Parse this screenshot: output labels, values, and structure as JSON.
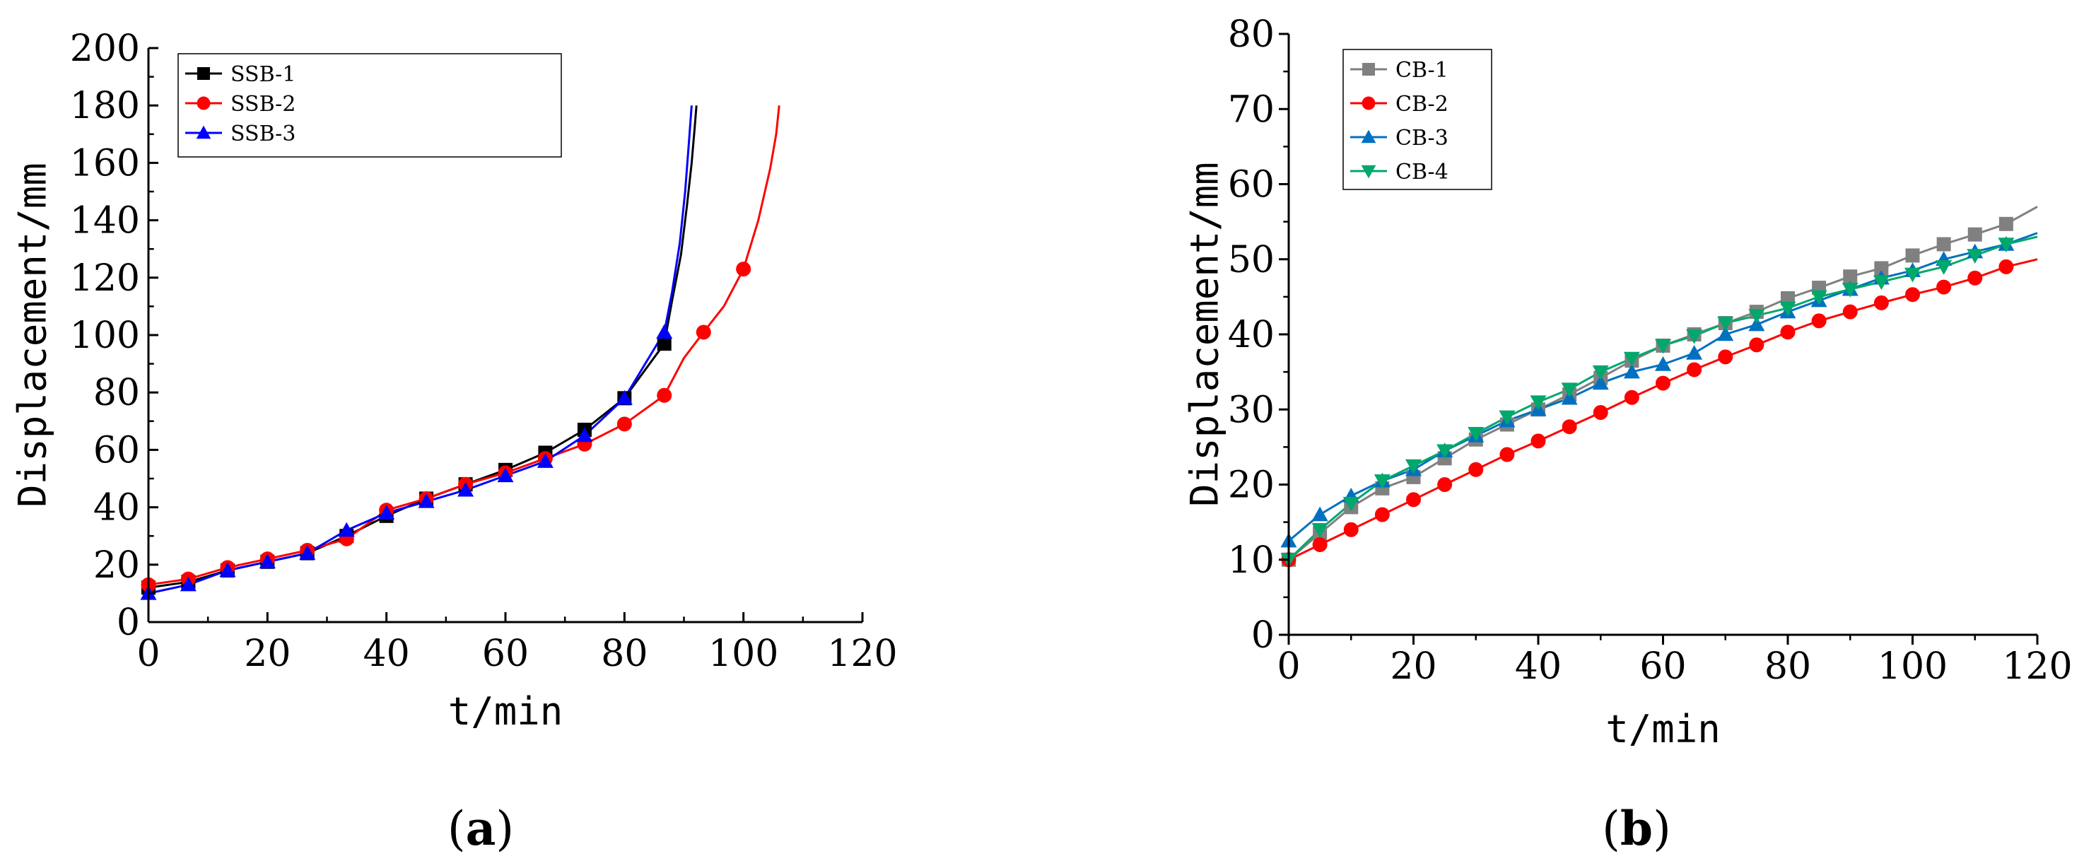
{
  "chart_data": [
    {
      "type": "line",
      "panel_label": "a",
      "title": "",
      "xlabel": "t/min",
      "ylabel": "Displacement/mm",
      "xlim": [
        0,
        120
      ],
      "ylim": [
        0,
        200
      ],
      "xticks": [
        0,
        20,
        40,
        60,
        80,
        100,
        120
      ],
      "yticks": [
        0,
        20,
        40,
        60,
        80,
        100,
        120,
        140,
        160,
        180,
        200
      ],
      "legend_position": "top-left",
      "series": [
        {
          "name": "SSB-1",
          "color": "#000000",
          "marker": "square",
          "x": [
            0,
            6.7,
            13.3,
            20,
            26.7,
            33.3,
            40,
            46.7,
            53.3,
            60,
            66.7,
            73.3,
            80,
            86.7,
            88,
            89.5,
            90.5,
            91.3,
            91.8,
            92.1
          ],
          "y": [
            12,
            14,
            18,
            21,
            24,
            30,
            37,
            43,
            48,
            53,
            59,
            67,
            78,
            97,
            112,
            128,
            145,
            160,
            172,
            180
          ],
          "marker_x": [
            0,
            6.7,
            13.3,
            20,
            26.7,
            33.3,
            40,
            46.7,
            53.3,
            60,
            66.7,
            73.3,
            80,
            86.7
          ],
          "marker_y": [
            12,
            14,
            18,
            21,
            24,
            30,
            37,
            43,
            48,
            53,
            59,
            67,
            78,
            97
          ]
        },
        {
          "name": "SSB-2",
          "color": "#ff0000",
          "marker": "circle",
          "x": [
            0,
            6.7,
            13.3,
            20,
            26.7,
            33.3,
            40,
            46.7,
            53.3,
            60,
            66.7,
            73.3,
            80,
            86.7,
            90,
            93.3,
            96.7,
            100,
            102.5,
            104.5,
            105.5,
            106
          ],
          "y": [
            13,
            15,
            19,
            22,
            25,
            29,
            39,
            43,
            48,
            52,
            57,
            62,
            69,
            79,
            92,
            101,
            110,
            123,
            140,
            158,
            170,
            180
          ],
          "marker_x": [
            0,
            6.7,
            13.3,
            20,
            26.7,
            33.3,
            40,
            46.7,
            53.3,
            60,
            66.7,
            73.3,
            80,
            86.7,
            93.3,
            100
          ],
          "marker_y": [
            13,
            15,
            19,
            22,
            25,
            29,
            39,
            43,
            48,
            52,
            57,
            62,
            69,
            79,
            101,
            123
          ]
        },
        {
          "name": "SSB-3",
          "color": "#0000ff",
          "marker": "triangle-up",
          "x": [
            0,
            6.7,
            13.3,
            20,
            26.7,
            33.3,
            40,
            46.7,
            53.3,
            60,
            66.7,
            73.3,
            80,
            86.7,
            88,
            89.3,
            90.2,
            90.8,
            91.3
          ],
          "y": [
            10,
            13,
            18,
            21,
            24,
            32,
            38,
            42,
            46,
            51,
            56,
            65,
            78,
            101,
            115,
            132,
            150,
            166,
            180
          ],
          "marker_x": [
            0,
            6.7,
            13.3,
            20,
            26.7,
            33.3,
            40,
            46.7,
            53.3,
            60,
            66.7,
            73.3,
            80,
            86.7
          ],
          "marker_y": [
            10,
            13,
            18,
            21,
            24,
            32,
            38,
            42,
            46,
            51,
            56,
            65,
            78,
            101
          ]
        }
      ]
    },
    {
      "type": "line",
      "panel_label": "b",
      "title": "",
      "xlabel": "t/min",
      "ylabel": "Displacement/mm",
      "xlim": [
        0,
        120
      ],
      "ylim": [
        0,
        80
      ],
      "xticks": [
        0,
        20,
        40,
        60,
        80,
        100,
        120
      ],
      "yticks": [
        0,
        10,
        20,
        30,
        40,
        50,
        60,
        70,
        80
      ],
      "legend_position": "top-left",
      "series": [
        {
          "name": "CB-1",
          "color": "#808080",
          "marker": "square",
          "x": [
            0,
            5,
            10,
            15,
            20,
            25,
            30,
            35,
            40,
            45,
            50,
            55,
            60,
            65,
            70,
            75,
            80,
            85,
            90,
            95,
            100,
            105,
            110,
            115,
            120
          ],
          "y": [
            10,
            13.5,
            17,
            19.5,
            21,
            23.5,
            26,
            28,
            30,
            32,
            34.2,
            36.5,
            38.5,
            40,
            41.5,
            43,
            44.8,
            46.2,
            47.7,
            48.8,
            50.5,
            52,
            53.3,
            54.7,
            57
          ],
          "marker_x": [
            0,
            5,
            10,
            15,
            20,
            25,
            30,
            35,
            40,
            45,
            50,
            55,
            60,
            65,
            70,
            75,
            80,
            85,
            90,
            95,
            100,
            105,
            110,
            115
          ],
          "marker_y": [
            10,
            13.5,
            17,
            19.5,
            21,
            23.5,
            26,
            28,
            30,
            32,
            34.2,
            36.5,
            38.5,
            40,
            41.5,
            43,
            44.8,
            46.2,
            47.7,
            48.8,
            50.5,
            52,
            53.3,
            54.7
          ]
        },
        {
          "name": "CB-2",
          "color": "#ff0000",
          "marker": "circle",
          "x": [
            0,
            5,
            10,
            15,
            20,
            25,
            30,
            35,
            40,
            45,
            50,
            55,
            60,
            65,
            70,
            75,
            80,
            85,
            90,
            95,
            100,
            105,
            110,
            115,
            120
          ],
          "y": [
            10,
            12,
            14,
            16,
            18,
            20,
            22,
            24,
            25.8,
            27.7,
            29.6,
            31.6,
            33.5,
            35.3,
            37,
            38.6,
            40.3,
            41.8,
            43,
            44.2,
            45.3,
            46.3,
            47.5,
            49,
            50
          ],
          "marker_x": [
            0,
            5,
            10,
            15,
            20,
            25,
            30,
            35,
            40,
            45,
            50,
            55,
            60,
            65,
            70,
            75,
            80,
            85,
            90,
            95,
            100,
            105,
            110,
            115
          ],
          "marker_y": [
            10,
            12,
            14,
            16,
            18,
            20,
            22,
            24,
            25.8,
            27.7,
            29.6,
            31.6,
            33.5,
            35.3,
            37,
            38.6,
            40.3,
            41.8,
            43,
            44.2,
            45.3,
            46.3,
            47.5,
            49
          ]
        },
        {
          "name": "CB-3",
          "color": "#0070c0",
          "marker": "triangle-up",
          "x": [
            0,
            5,
            10,
            15,
            20,
            25,
            30,
            35,
            40,
            45,
            50,
            55,
            60,
            65,
            70,
            75,
            80,
            85,
            90,
            95,
            100,
            105,
            110,
            115,
            120
          ],
          "y": [
            12.5,
            16,
            18.5,
            20.5,
            22,
            24.5,
            26.5,
            28.5,
            30,
            31.5,
            33.5,
            35,
            36,
            37.5,
            40,
            41.3,
            43,
            44.5,
            46,
            47.5,
            48.5,
            50,
            51,
            52,
            53.5
          ],
          "marker_x": [
            0,
            5,
            10,
            15,
            20,
            25,
            30,
            35,
            40,
            45,
            50,
            55,
            60,
            65,
            70,
            75,
            80,
            85,
            90,
            95,
            100,
            105,
            110,
            115
          ],
          "marker_y": [
            12.5,
            16,
            18.5,
            20.5,
            22,
            24.5,
            26.5,
            28.5,
            30,
            31.5,
            33.5,
            35,
            36,
            37.5,
            40,
            41.3,
            43,
            44.5,
            46,
            47.5,
            48.5,
            50,
            51,
            52
          ]
        },
        {
          "name": "CB-4",
          "color": "#00a86b",
          "marker": "triangle-down",
          "x": [
            0,
            5,
            10,
            15,
            20,
            25,
            30,
            35,
            40,
            45,
            50,
            55,
            60,
            65,
            70,
            75,
            80,
            85,
            90,
            95,
            100,
            105,
            110,
            115,
            120
          ],
          "y": [
            10,
            14,
            17.5,
            20.5,
            22.5,
            24.5,
            26.8,
            29,
            31,
            32.7,
            35,
            36.8,
            38.5,
            39.8,
            41.5,
            42.5,
            43.5,
            45,
            46,
            47,
            48,
            49,
            50.5,
            52,
            53
          ],
          "marker_x": [
            0,
            5,
            10,
            15,
            20,
            25,
            30,
            35,
            40,
            45,
            50,
            55,
            60,
            65,
            70,
            75,
            80,
            85,
            90,
            95,
            100,
            105,
            110,
            115
          ],
          "marker_y": [
            10,
            14,
            17.5,
            20.5,
            22.5,
            24.5,
            26.8,
            29,
            31,
            32.7,
            35,
            36.8,
            38.5,
            39.8,
            41.5,
            42.5,
            43.5,
            45,
            46,
            47,
            48,
            49,
            50.5,
            52
          ]
        }
      ]
    }
  ]
}
